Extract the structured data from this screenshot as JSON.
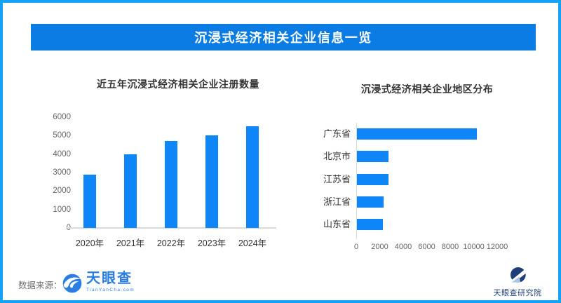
{
  "frame": {
    "border_color": "#15a1f8",
    "background": "#ffffff"
  },
  "header": {
    "title": "沉浸式经济相关企业信息一览",
    "background": "#0b7ce4",
    "text_color": "#ffffff"
  },
  "chart_data": [
    {
      "id": "registrations",
      "type": "bar",
      "title": "近五年沉浸式经济相关企业注册数量",
      "categories": [
        "2020年",
        "2021年",
        "2022年",
        "2023年",
        "2024年"
      ],
      "values": [
        2900,
        4000,
        4700,
        5000,
        5500
      ],
      "ylim": [
        0,
        6000
      ],
      "yticks": [
        0,
        1000,
        2000,
        3000,
        4000,
        5000,
        6000
      ],
      "bar_color": "#0e86f7",
      "grid": false,
      "legend": "none"
    },
    {
      "id": "regions",
      "type": "bar-horizontal",
      "title": "沉浸式经济相关企业地区分布",
      "categories": [
        "广东省",
        "北京市",
        "江苏省",
        "浙江省",
        "山东省"
      ],
      "values": [
        10200,
        2700,
        2700,
        2250,
        2200
      ],
      "xlim": [
        0,
        12000
      ],
      "xticks": [
        0,
        2000,
        4000,
        6000,
        8000,
        10000,
        12000
      ],
      "bar_color": "#0e86f7",
      "grid": false,
      "legend": "none"
    }
  ],
  "footer": {
    "source_label": "数据来源：",
    "source_logo": {
      "icon": "tianyancha-swirl",
      "name": "天眼查",
      "domain": "TianYanCha.com",
      "color": "#2a7de1"
    },
    "institute": {
      "icon": "tianyancha-institute",
      "name": "天眼查研究院",
      "color": "#1d3e79"
    }
  }
}
